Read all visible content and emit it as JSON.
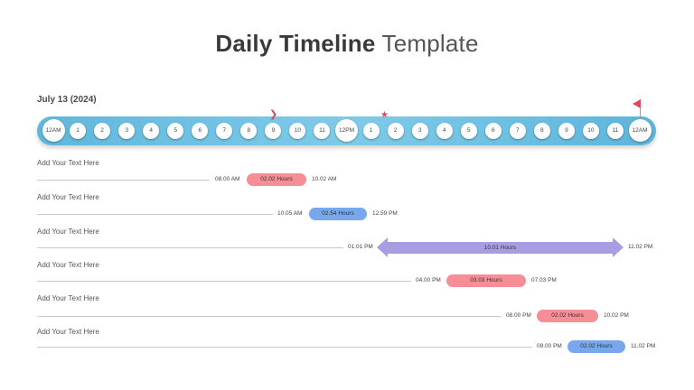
{
  "title": {
    "bold": "Daily Timeline",
    "light": "Template"
  },
  "date_label": "July 13 (2024)",
  "hours": [
    "12AM",
    "1",
    "2",
    "3",
    "4",
    "5",
    "6",
    "7",
    "8",
    "9",
    "10",
    "11",
    "12PM",
    "1",
    "2",
    "3",
    "4",
    "5",
    "6",
    "7",
    "8",
    "9",
    "10",
    "11",
    "12AM"
  ],
  "colors": {
    "bar": "#6cc0e3",
    "red_pill": "#f58e96",
    "blue_pill": "#77a7ec",
    "range_arrow": "#a99de2",
    "marker": "#e0455a"
  },
  "icons": {
    "chevron": "chevron-right-icon",
    "star": "star-icon",
    "flag": "flag-icon"
  },
  "rows": [
    {
      "label": "Add Your Text Here",
      "start": "08.00 AM",
      "duration": "02.02 Hours",
      "end": "10.02 AM",
      "style": "red"
    },
    {
      "label": "Add Your Text Here",
      "start": "10.05 AM",
      "duration": "02.54 Hours",
      "end": "12.59 PM",
      "style": "blue"
    },
    {
      "label": "Add Your Text Here",
      "start": "01.01 PM",
      "duration": "10.01 Hours",
      "end": "11.02 PM",
      "style": "arrow"
    },
    {
      "label": "Add Your Text Here",
      "start": "04.00 PM",
      "duration": "03.03 Hours",
      "end": "07.03 PM",
      "style": "red"
    },
    {
      "label": "Add Your Text Here",
      "start": "08.00 PM",
      "duration": "02.02 Hours",
      "end": "10.02 PM",
      "style": "red"
    },
    {
      "label": "Add Your Text Here",
      "start": "09.00 PM",
      "duration": "02.02 Hours",
      "end": "11.02 PM",
      "style": "blue"
    }
  ]
}
